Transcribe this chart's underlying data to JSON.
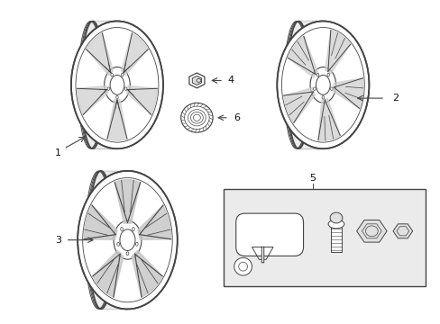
{
  "bg_color": "#ffffff",
  "fig_width": 4.89,
  "fig_height": 3.6,
  "dpi": 100,
  "arrow_color": "#444444",
  "line_color": "#444444",
  "spoke_fill": "#d8d8d8",
  "dark_fill": "#b0b0b0"
}
